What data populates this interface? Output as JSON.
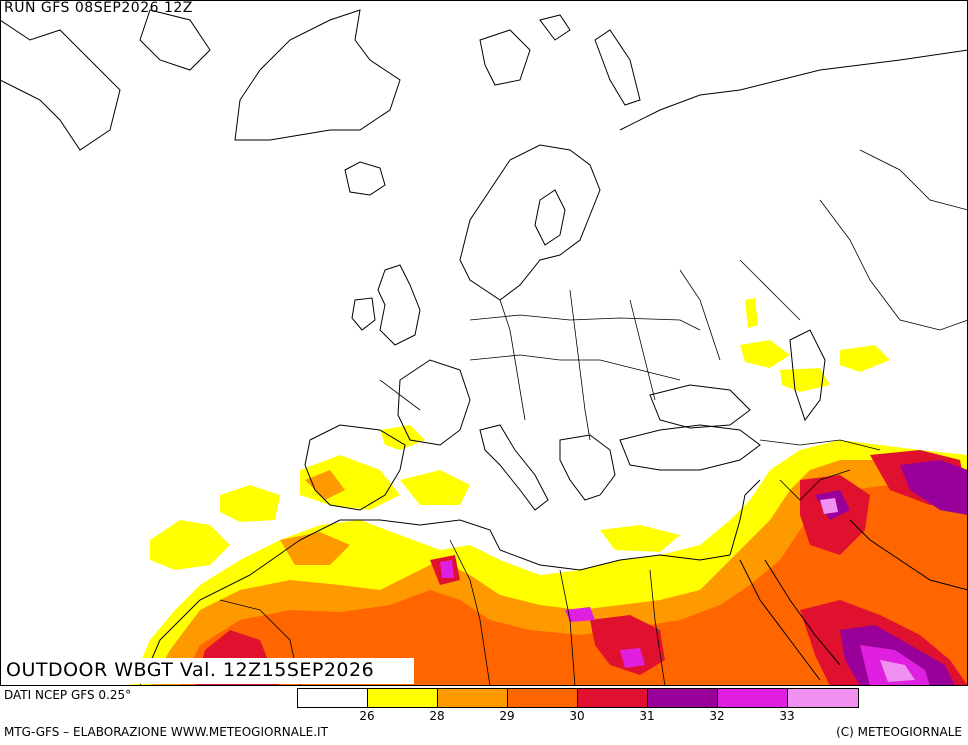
{
  "header": {
    "run": "RUN GFS 08SEP2026 12Z"
  },
  "title": "OUTDOOR WBGT Val. 12Z15SEP2026",
  "source": "DATI NCEP GFS 0.25°",
  "legend": {
    "colors": [
      "#ffffff",
      "#ffff00",
      "#ff9900",
      "#ff6600",
      "#e0102f",
      "#990099",
      "#e020e0",
      "#f090f0"
    ],
    "ticks": [
      "26",
      "28",
      "29",
      "30",
      "31",
      "32",
      "33"
    ]
  },
  "footer": {
    "left": "MTG-GFS – ELABORAZIONE WWW.METEOGIORNALE.IT",
    "right": "(C) METEOGIORNALE"
  }
}
